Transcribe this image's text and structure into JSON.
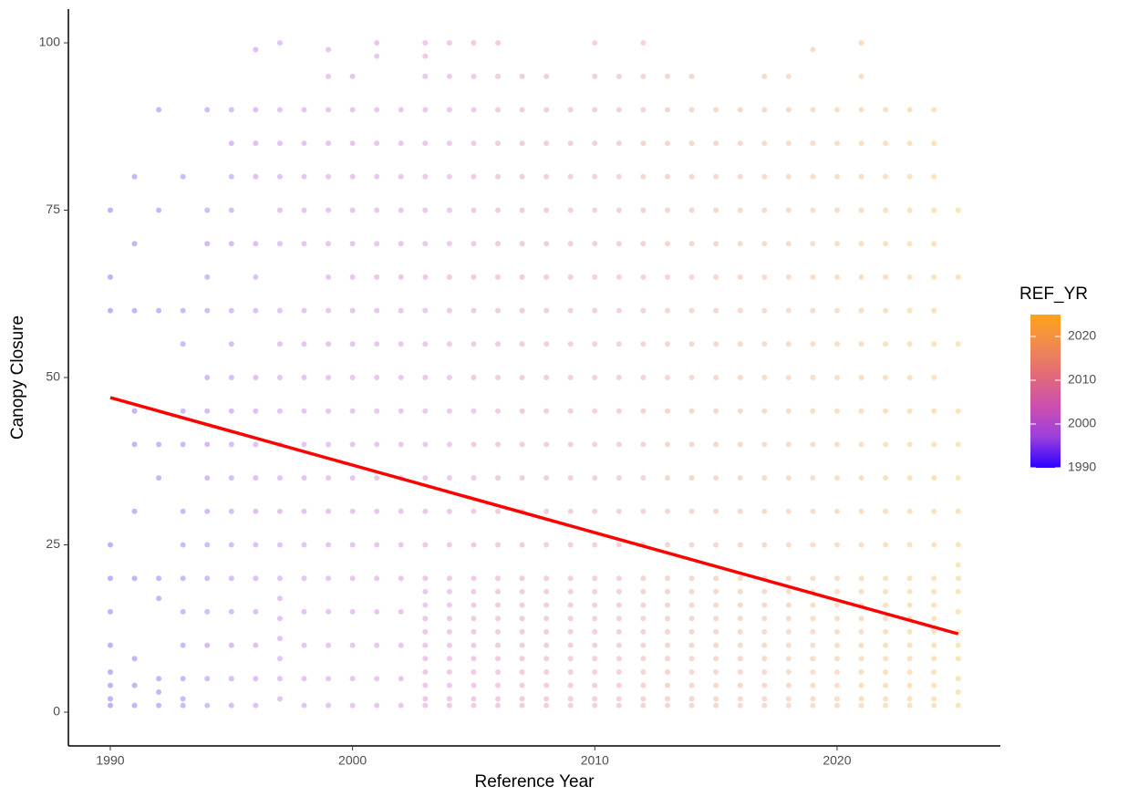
{
  "chart_data": {
    "type": "scatter",
    "x_label": "Reference Year",
    "y_label": "Canopy Closure",
    "xlim": [
      1988.27,
      2026.74
    ],
    "ylim": [
      -5.04,
      105.04
    ],
    "xticks": [
      1990,
      2000,
      2010,
      2020
    ],
    "yticks": [
      0,
      25,
      50,
      75,
      100
    ],
    "point_opacity": 0.3,
    "x": [
      1990,
      1991,
      1992,
      1993,
      1994,
      1995,
      1996,
      1997,
      1998,
      1999,
      2000,
      2001,
      2002,
      2003,
      2004,
      2005,
      2006,
      2007,
      2008,
      2009,
      2010,
      2011,
      2012,
      2013,
      2014,
      2015,
      2016,
      2017,
      2018,
      2019,
      2020,
      2021,
      2022,
      2023,
      2024,
      2025
    ],
    "values": [
      [
        75,
        65,
        60,
        25,
        20,
        15,
        10,
        6,
        4,
        2,
        1
      ],
      [
        80,
        70,
        60,
        45,
        40,
        30,
        20,
        8,
        4,
        1
      ],
      [
        90,
        75,
        60,
        40,
        35,
        20,
        17,
        5,
        3,
        1
      ],
      [
        80,
        60,
        55,
        45,
        40,
        30,
        25,
        20,
        15,
        10,
        5,
        2,
        1
      ],
      [
        90,
        75,
        70,
        65,
        60,
        50,
        45,
        40,
        35,
        30,
        25,
        20,
        15,
        10,
        5,
        1
      ],
      [
        90,
        85,
        80,
        75,
        70,
        60,
        55,
        50,
        45,
        40,
        35,
        30,
        25,
        20,
        15,
        10,
        5,
        1
      ],
      [
        99,
        90,
        85,
        80,
        70,
        65,
        60,
        50,
        45,
        40,
        35,
        30,
        25,
        20,
        15,
        10,
        5,
        1
      ],
      [
        100,
        90,
        85,
        80,
        75,
        70,
        60,
        55,
        50,
        45,
        40,
        35,
        30,
        25,
        20,
        17,
        14,
        11,
        8,
        5,
        2
      ],
      [
        90,
        85,
        80,
        75,
        70,
        60,
        55,
        50,
        45,
        40,
        35,
        30,
        25,
        20,
        15,
        10,
        5,
        1
      ],
      [
        99,
        95,
        90,
        85,
        80,
        75,
        70,
        65,
        60,
        55,
        50,
        45,
        40,
        35,
        30,
        25,
        20,
        15,
        10,
        5,
        1
      ],
      [
        95,
        90,
        85,
        80,
        75,
        70,
        65,
        60,
        55,
        50,
        45,
        40,
        35,
        30,
        25,
        20,
        15,
        10,
        5,
        1
      ],
      [
        100,
        98,
        90,
        85,
        80,
        75,
        70,
        65,
        60,
        55,
        50,
        45,
        40,
        35,
        30,
        25,
        20,
        15,
        10,
        5,
        1
      ],
      [
        90,
        85,
        80,
        75,
        70,
        65,
        60,
        55,
        50,
        45,
        40,
        35,
        30,
        25,
        20,
        15,
        10,
        5,
        1
      ],
      [
        100,
        98,
        95,
        90,
        85,
        80,
        75,
        70,
        65,
        60,
        55,
        50,
        45,
        40,
        35,
        30,
        25,
        20,
        18,
        16,
        14,
        12,
        10,
        8,
        6,
        4,
        2,
        1
      ],
      [
        100,
        95,
        90,
        85,
        80,
        75,
        70,
        65,
        60,
        55,
        50,
        45,
        40,
        35,
        30,
        25,
        20,
        18,
        16,
        14,
        12,
        10,
        8,
        6,
        4,
        2,
        1
      ],
      [
        100,
        95,
        90,
        85,
        80,
        75,
        70,
        65,
        60,
        55,
        50,
        45,
        40,
        35,
        30,
        25,
        20,
        18,
        16,
        14,
        12,
        10,
        8,
        6,
        4,
        2,
        1
      ],
      [
        100,
        95,
        90,
        85,
        80,
        75,
        70,
        65,
        60,
        55,
        50,
        45,
        40,
        35,
        30,
        25,
        20,
        18,
        16,
        14,
        12,
        10,
        8,
        6,
        4,
        2,
        1
      ],
      [
        95,
        90,
        85,
        80,
        75,
        70,
        65,
        60,
        55,
        50,
        45,
        40,
        35,
        30,
        25,
        20,
        18,
        16,
        14,
        12,
        10,
        8,
        6,
        4,
        2,
        1
      ],
      [
        95,
        90,
        85,
        80,
        75,
        70,
        65,
        60,
        55,
        50,
        45,
        40,
        35,
        30,
        25,
        20,
        18,
        16,
        14,
        12,
        10,
        8,
        6,
        4,
        2,
        1
      ],
      [
        90,
        85,
        80,
        75,
        70,
        65,
        60,
        55,
        50,
        45,
        40,
        35,
        30,
        25,
        20,
        18,
        16,
        14,
        12,
        10,
        8,
        6,
        4,
        2,
        1
      ],
      [
        100,
        95,
        90,
        85,
        80,
        75,
        70,
        65,
        60,
        55,
        50,
        45,
        40,
        35,
        30,
        25,
        20,
        18,
        16,
        14,
        12,
        10,
        8,
        6,
        4,
        2,
        1
      ],
      [
        95,
        90,
        85,
        80,
        75,
        70,
        65,
        60,
        55,
        50,
        45,
        40,
        35,
        30,
        25,
        20,
        18,
        16,
        14,
        12,
        10,
        8,
        6,
        4,
        2,
        1
      ],
      [
        100,
        95,
        90,
        85,
        80,
        75,
        70,
        65,
        60,
        55,
        50,
        45,
        40,
        35,
        30,
        25,
        20,
        18,
        16,
        14,
        12,
        10,
        8,
        6,
        4,
        2,
        1
      ],
      [
        95,
        90,
        85,
        80,
        75,
        70,
        65,
        60,
        55,
        50,
        45,
        40,
        35,
        30,
        25,
        20,
        18,
        16,
        14,
        12,
        10,
        8,
        6,
        4,
        2,
        1
      ],
      [
        95,
        90,
        85,
        80,
        75,
        70,
        65,
        60,
        55,
        50,
        45,
        40,
        35,
        30,
        25,
        20,
        18,
        16,
        14,
        12,
        10,
        8,
        6,
        4,
        2,
        1
      ],
      [
        90,
        85,
        80,
        75,
        70,
        65,
        60,
        55,
        50,
        45,
        40,
        35,
        30,
        25,
        20,
        18,
        16,
        14,
        12,
        10,
        8,
        6,
        4,
        2,
        1
      ],
      [
        90,
        85,
        80,
        75,
        70,
        65,
        60,
        55,
        50,
        45,
        40,
        35,
        30,
        25,
        20,
        18,
        16,
        14,
        12,
        10,
        8,
        6,
        4,
        2,
        1
      ],
      [
        95,
        90,
        85,
        80,
        75,
        70,
        65,
        60,
        55,
        50,
        45,
        40,
        35,
        30,
        25,
        20,
        18,
        16,
        14,
        12,
        10,
        8,
        6,
        4,
        2,
        1
      ],
      [
        95,
        90,
        85,
        80,
        75,
        70,
        65,
        60,
        55,
        50,
        45,
        40,
        35,
        30,
        25,
        20,
        18,
        16,
        14,
        12,
        10,
        8,
        6,
        4,
        2,
        1
      ],
      [
        99,
        90,
        85,
        80,
        75,
        70,
        65,
        60,
        55,
        50,
        45,
        40,
        35,
        30,
        25,
        20,
        18,
        16,
        14,
        12,
        10,
        8,
        6,
        4,
        2,
        1
      ],
      [
        90,
        85,
        80,
        75,
        70,
        65,
        60,
        55,
        50,
        45,
        40,
        35,
        30,
        25,
        20,
        18,
        16,
        14,
        12,
        10,
        8,
        6,
        4,
        2,
        1
      ],
      [
        100,
        95,
        90,
        85,
        80,
        75,
        70,
        65,
        60,
        55,
        50,
        45,
        40,
        35,
        30,
        25,
        20,
        18,
        16,
        14,
        12,
        10,
        8,
        6,
        4,
        2,
        1
      ],
      [
        90,
        85,
        80,
        75,
        70,
        65,
        60,
        55,
        50,
        45,
        40,
        35,
        30,
        25,
        20,
        18,
        16,
        14,
        12,
        10,
        8,
        6,
        4,
        2,
        1
      ],
      [
        90,
        85,
        80,
        75,
        70,
        65,
        60,
        55,
        50,
        45,
        40,
        35,
        30,
        25,
        20,
        18,
        16,
        14,
        12,
        10,
        8,
        6,
        4,
        2,
        1
      ],
      [
        90,
        85,
        80,
        75,
        70,
        65,
        60,
        55,
        50,
        45,
        40,
        35,
        30,
        25,
        20,
        18,
        16,
        14,
        12,
        10,
        8,
        6,
        4,
        2,
        1
      ],
      [
        75,
        65,
        55,
        45,
        40,
        35,
        30,
        25,
        22,
        20,
        18,
        15,
        12,
        10,
        8,
        5,
        3,
        1
      ]
    ],
    "trend_line": {
      "x": [
        1990,
        2025
      ],
      "y": [
        47,
        11.7
      ],
      "color": "#ff0000"
    },
    "colorbar": {
      "title": "REF_YR",
      "lim": [
        1990,
        2025
      ],
      "ticks": [
        1990,
        2000,
        2010,
        2020
      ],
      "colors": [
        "#2a00ff",
        "#9b3fdc",
        "#cc4fb0",
        "#e06a78",
        "#f08a50",
        "#ffa31a"
      ]
    }
  }
}
